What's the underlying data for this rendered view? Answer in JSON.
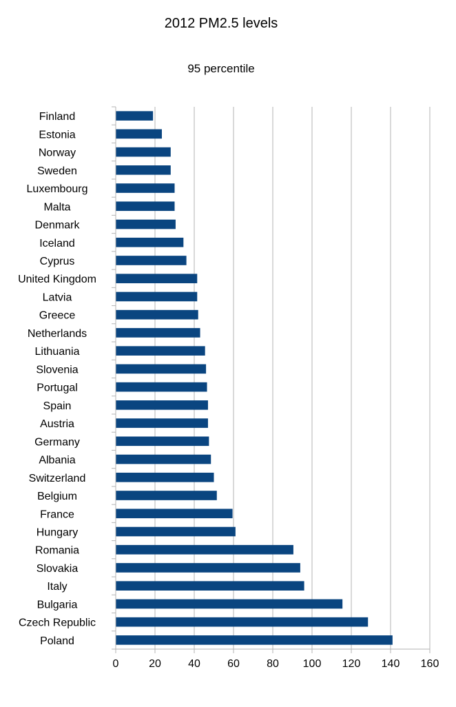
{
  "chart_data": {
    "type": "bar",
    "orientation": "horizontal",
    "title": "2012 PM2.5 levels",
    "subtitle": "95 percentile",
    "xlabel": "",
    "ylabel": "",
    "xlim": [
      0,
      160
    ],
    "xticks": [
      0,
      20,
      40,
      60,
      80,
      100,
      120,
      140,
      160
    ],
    "grid": "vertical",
    "legend": "none",
    "bar_color": "#0a4580",
    "categories": [
      "Finland",
      "Estonia",
      "Norway",
      "Sweden",
      "Luxembourg",
      "Malta",
      "Denmark",
      "Iceland",
      "Cyprus",
      "United Kingdom",
      "Latvia",
      "Greece",
      "Netherlands",
      "Lithuania",
      "Slovenia",
      "Portugal",
      "Spain",
      "Austria",
      "Germany",
      "Albania",
      "Switzerland",
      "Belgium",
      "France",
      "Hungary",
      "Romania",
      "Slovakia",
      "Italy",
      "Bulgaria",
      "Czech Republic",
      "Poland"
    ],
    "values": [
      19,
      23.5,
      28,
      28,
      30,
      30,
      30.5,
      34.5,
      36,
      41.5,
      41.5,
      42,
      43,
      45.5,
      46,
      46.5,
      47,
      47,
      47.5,
      48.5,
      50,
      51.5,
      59.5,
      61,
      90.5,
      94,
      96,
      115.5,
      128.5,
      141
    ]
  }
}
